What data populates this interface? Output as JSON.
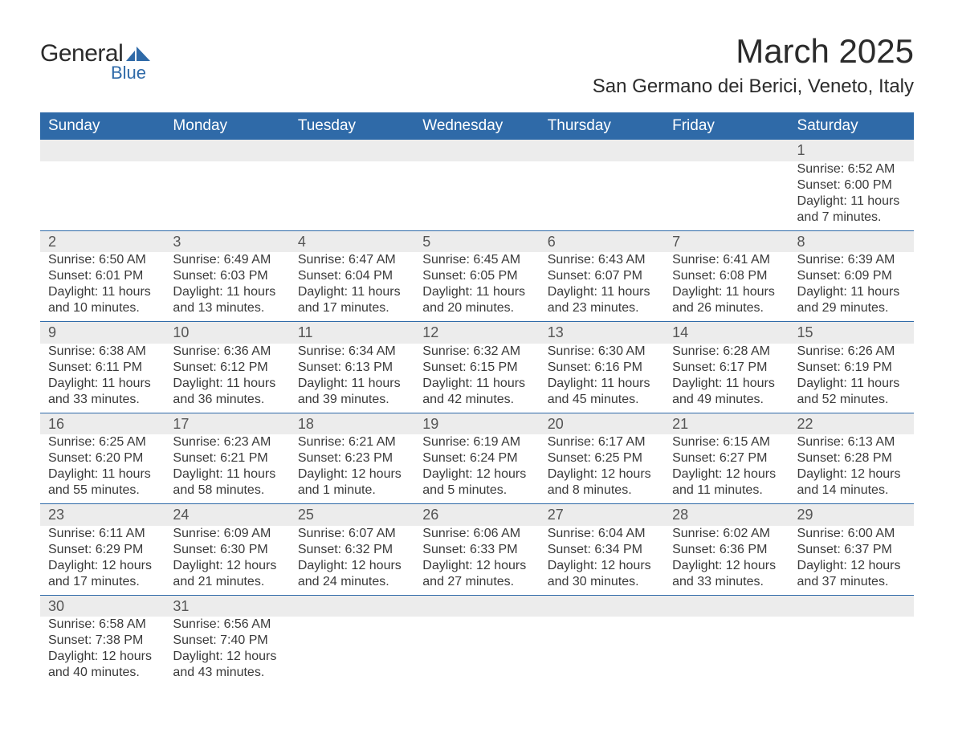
{
  "brand": {
    "word1": "General",
    "word2": "Blue",
    "color": "#2f6aa8"
  },
  "title": "March 2025",
  "location": "San Germano dei Berici, Veneto, Italy",
  "colors": {
    "header_bg": "#2f6aa8",
    "header_text": "#ffffff",
    "daynum_bg": "#ececec",
    "text": "#3a3a3a",
    "page_bg": "#ffffff",
    "row_divider": "#2f6aa8"
  },
  "typography": {
    "title_fontsize": 42,
    "location_fontsize": 24,
    "dayheader_fontsize": 19,
    "daynum_fontsize": 18,
    "body_fontsize": 16
  },
  "day_headers": [
    "Sunday",
    "Monday",
    "Tuesday",
    "Wednesday",
    "Thursday",
    "Friday",
    "Saturday"
  ],
  "weeks": [
    [
      null,
      null,
      null,
      null,
      null,
      null,
      {
        "n": "1",
        "sunrise": "6:52 AM",
        "sunset": "6:00 PM",
        "daylight": "11 hours and 7 minutes."
      }
    ],
    [
      {
        "n": "2",
        "sunrise": "6:50 AM",
        "sunset": "6:01 PM",
        "daylight": "11 hours and 10 minutes."
      },
      {
        "n": "3",
        "sunrise": "6:49 AM",
        "sunset": "6:03 PM",
        "daylight": "11 hours and 13 minutes."
      },
      {
        "n": "4",
        "sunrise": "6:47 AM",
        "sunset": "6:04 PM",
        "daylight": "11 hours and 17 minutes."
      },
      {
        "n": "5",
        "sunrise": "6:45 AM",
        "sunset": "6:05 PM",
        "daylight": "11 hours and 20 minutes."
      },
      {
        "n": "6",
        "sunrise": "6:43 AM",
        "sunset": "6:07 PM",
        "daylight": "11 hours and 23 minutes."
      },
      {
        "n": "7",
        "sunrise": "6:41 AM",
        "sunset": "6:08 PM",
        "daylight": "11 hours and 26 minutes."
      },
      {
        "n": "8",
        "sunrise": "6:39 AM",
        "sunset": "6:09 PM",
        "daylight": "11 hours and 29 minutes."
      }
    ],
    [
      {
        "n": "9",
        "sunrise": "6:38 AM",
        "sunset": "6:11 PM",
        "daylight": "11 hours and 33 minutes."
      },
      {
        "n": "10",
        "sunrise": "6:36 AM",
        "sunset": "6:12 PM",
        "daylight": "11 hours and 36 minutes."
      },
      {
        "n": "11",
        "sunrise": "6:34 AM",
        "sunset": "6:13 PM",
        "daylight": "11 hours and 39 minutes."
      },
      {
        "n": "12",
        "sunrise": "6:32 AM",
        "sunset": "6:15 PM",
        "daylight": "11 hours and 42 minutes."
      },
      {
        "n": "13",
        "sunrise": "6:30 AM",
        "sunset": "6:16 PM",
        "daylight": "11 hours and 45 minutes."
      },
      {
        "n": "14",
        "sunrise": "6:28 AM",
        "sunset": "6:17 PM",
        "daylight": "11 hours and 49 minutes."
      },
      {
        "n": "15",
        "sunrise": "6:26 AM",
        "sunset": "6:19 PM",
        "daylight": "11 hours and 52 minutes."
      }
    ],
    [
      {
        "n": "16",
        "sunrise": "6:25 AM",
        "sunset": "6:20 PM",
        "daylight": "11 hours and 55 minutes."
      },
      {
        "n": "17",
        "sunrise": "6:23 AM",
        "sunset": "6:21 PM",
        "daylight": "11 hours and 58 minutes."
      },
      {
        "n": "18",
        "sunrise": "6:21 AM",
        "sunset": "6:23 PM",
        "daylight": "12 hours and 1 minute."
      },
      {
        "n": "19",
        "sunrise": "6:19 AM",
        "sunset": "6:24 PM",
        "daylight": "12 hours and 5 minutes."
      },
      {
        "n": "20",
        "sunrise": "6:17 AM",
        "sunset": "6:25 PM",
        "daylight": "12 hours and 8 minutes."
      },
      {
        "n": "21",
        "sunrise": "6:15 AM",
        "sunset": "6:27 PM",
        "daylight": "12 hours and 11 minutes."
      },
      {
        "n": "22",
        "sunrise": "6:13 AM",
        "sunset": "6:28 PM",
        "daylight": "12 hours and 14 minutes."
      }
    ],
    [
      {
        "n": "23",
        "sunrise": "6:11 AM",
        "sunset": "6:29 PM",
        "daylight": "12 hours and 17 minutes."
      },
      {
        "n": "24",
        "sunrise": "6:09 AM",
        "sunset": "6:30 PM",
        "daylight": "12 hours and 21 minutes."
      },
      {
        "n": "25",
        "sunrise": "6:07 AM",
        "sunset": "6:32 PM",
        "daylight": "12 hours and 24 minutes."
      },
      {
        "n": "26",
        "sunrise": "6:06 AM",
        "sunset": "6:33 PM",
        "daylight": "12 hours and 27 minutes."
      },
      {
        "n": "27",
        "sunrise": "6:04 AM",
        "sunset": "6:34 PM",
        "daylight": "12 hours and 30 minutes."
      },
      {
        "n": "28",
        "sunrise": "6:02 AM",
        "sunset": "6:36 PM",
        "daylight": "12 hours and 33 minutes."
      },
      {
        "n": "29",
        "sunrise": "6:00 AM",
        "sunset": "6:37 PM",
        "daylight": "12 hours and 37 minutes."
      }
    ],
    [
      {
        "n": "30",
        "sunrise": "6:58 AM",
        "sunset": "7:38 PM",
        "daylight": "12 hours and 40 minutes."
      },
      {
        "n": "31",
        "sunrise": "6:56 AM",
        "sunset": "7:40 PM",
        "daylight": "12 hours and 43 minutes."
      },
      null,
      null,
      null,
      null,
      null
    ]
  ],
  "labels": {
    "sunrise": "Sunrise: ",
    "sunset": "Sunset: ",
    "daylight": "Daylight: "
  }
}
